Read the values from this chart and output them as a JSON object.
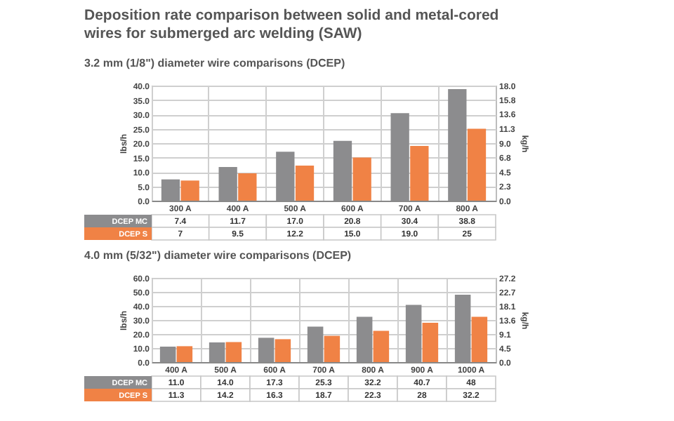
{
  "chart_data": [
    {
      "type": "bar",
      "title": "Deposition rate comparison between solid and metal-cored\nwires for submerged arc welding (SAW)",
      "subtitle": "3.2 mm (1/8\") diameter wire comparisons (DCEP)",
      "categories": [
        "300 A",
        "400 A",
        "500 A",
        "600 A",
        "700 A",
        "800 A"
      ],
      "series": [
        {
          "name": "DCEP MC",
          "color": "#8c8c8e",
          "values": [
            7.4,
            11.7,
            17.0,
            20.8,
            30.4,
            38.8
          ],
          "value_labels": [
            "7.4",
            "11.7",
            "17.0",
            "20.8",
            "30.4",
            "38.8"
          ]
        },
        {
          "name": "DCEP S",
          "color": "#f08245",
          "values": [
            7,
            9.5,
            12.2,
            15.0,
            19.0,
            25
          ],
          "value_labels": [
            "7",
            "9.5",
            "12.2",
            "15.0",
            "19.0",
            "25"
          ]
        }
      ],
      "ylabel": "lbs/h",
      "y2label": "kg/h",
      "ylim": [
        0,
        40
      ],
      "yticks": [
        {
          "value": 0,
          "label": "0.0"
        },
        {
          "value": 5,
          "label": "5.0"
        },
        {
          "value": 10,
          "label": "10.0"
        },
        {
          "value": 15,
          "label": "15.0"
        },
        {
          "value": 20,
          "label": "20.0"
        },
        {
          "value": 25,
          "label": "25.0"
        },
        {
          "value": 30,
          "label": "30.0"
        },
        {
          "value": 35,
          "label": "35.0"
        },
        {
          "value": 40,
          "label": "40.0"
        }
      ],
      "y2lim": [
        0,
        18
      ],
      "y2ticks": [
        {
          "value": 0,
          "label": "0.0"
        },
        2.3,
        4.5,
        6.8,
        {
          "value": 9,
          "label": "9.0"
        },
        11.3,
        13.6,
        15.8,
        {
          "value": 18,
          "label": "18.0"
        }
      ],
      "grid": true,
      "legend": "bottom left"
    },
    {
      "type": "bar",
      "title": "4.0 mm (5/32\") diameter wire comparisons (DCEP)",
      "categories": [
        "400 A",
        "500 A",
        "600 A",
        "700 A",
        "800 A",
        "900 A",
        "1000 A"
      ],
      "series": [
        {
          "name": "DCEP MC",
          "color": "#8c8c8e",
          "values": [
            11.0,
            14.0,
            17.3,
            25.3,
            32.2,
            40.7,
            48
          ],
          "value_labels": [
            "11.0",
            "14.0",
            "17.3",
            "25.3",
            "32.2",
            "40.7",
            "48"
          ]
        },
        {
          "name": "DCEP S",
          "color": "#f08245",
          "values": [
            11.3,
            14.2,
            16.3,
            18.7,
            22.3,
            28,
            32.2
          ],
          "value_labels": [
            "11.3",
            "14.2",
            "16.3",
            "18.7",
            "22.3",
            "28",
            "32.2"
          ]
        }
      ],
      "ylabel": "lbs/h",
      "y2label": "kg/h",
      "ylim": [
        0,
        60
      ],
      "yticks": [
        {
          "value": 0,
          "label": "0.0"
        },
        {
          "value": 10,
          "label": "10.0"
        },
        {
          "value": 20,
          "label": "20.0"
        },
        {
          "value": 30,
          "label": "30.0"
        },
        {
          "value": 40,
          "label": "40.0"
        },
        {
          "value": 50,
          "label": "50.0"
        },
        {
          "value": 60,
          "label": "60.0"
        }
      ],
      "y2lim": [
        0,
        27.2
      ],
      "y2ticks": [
        {
          "value": 0,
          "label": "0.0"
        },
        4.5,
        9.1,
        13.6,
        18.1,
        22.7,
        27.2
      ],
      "grid": true,
      "legend": "bottom left"
    }
  ]
}
